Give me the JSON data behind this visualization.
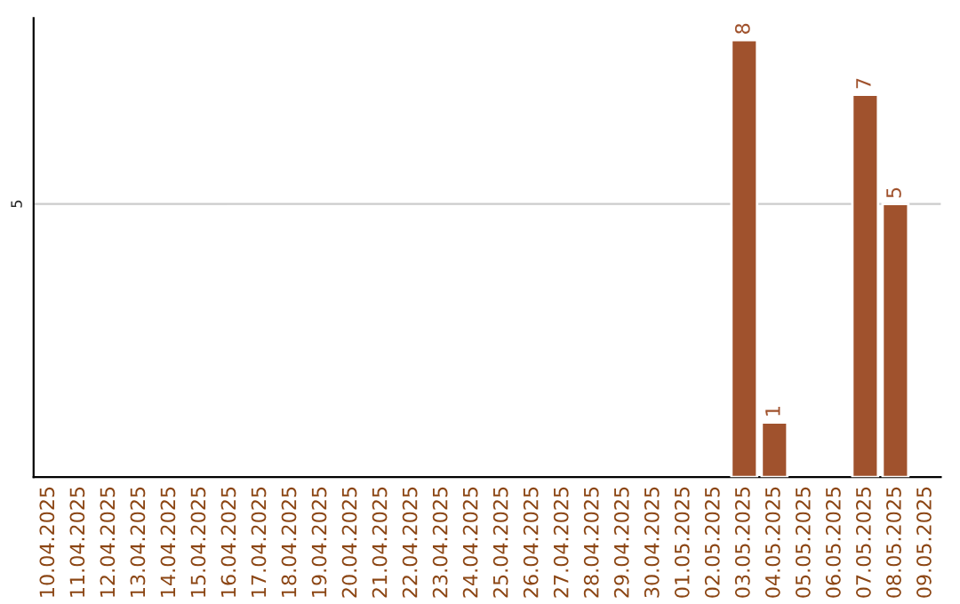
{
  "chart_data": {
    "type": "bar",
    "categories": [
      "10.04.2025",
      "11.04.2025",
      "12.04.2025",
      "13.04.2025",
      "14.04.2025",
      "15.04.2025",
      "16.04.2025",
      "17.04.2025",
      "18.04.2025",
      "19.04.2025",
      "20.04.2025",
      "21.04.2025",
      "22.04.2025",
      "23.04.2025",
      "24.04.2025",
      "25.04.2025",
      "26.04.2025",
      "27.04.2025",
      "28.04.2025",
      "29.04.2025",
      "30.04.2025",
      "01.05.2025",
      "02.05.2025",
      "03.05.2025",
      "04.05.2025",
      "05.05.2025",
      "06.05.2025",
      "07.05.2025",
      "08.05.2025",
      "09.05.2025"
    ],
    "values": [
      null,
      null,
      null,
      null,
      null,
      null,
      null,
      null,
      null,
      null,
      null,
      null,
      null,
      null,
      null,
      null,
      null,
      null,
      null,
      null,
      null,
      null,
      null,
      8,
      1,
      null,
      null,
      7,
      5,
      null
    ],
    "color": "#a0522d",
    "ylim": [
      0,
      8.4
    ],
    "yticks": [
      5
    ],
    "grid": "y",
    "data_labels": true
  }
}
